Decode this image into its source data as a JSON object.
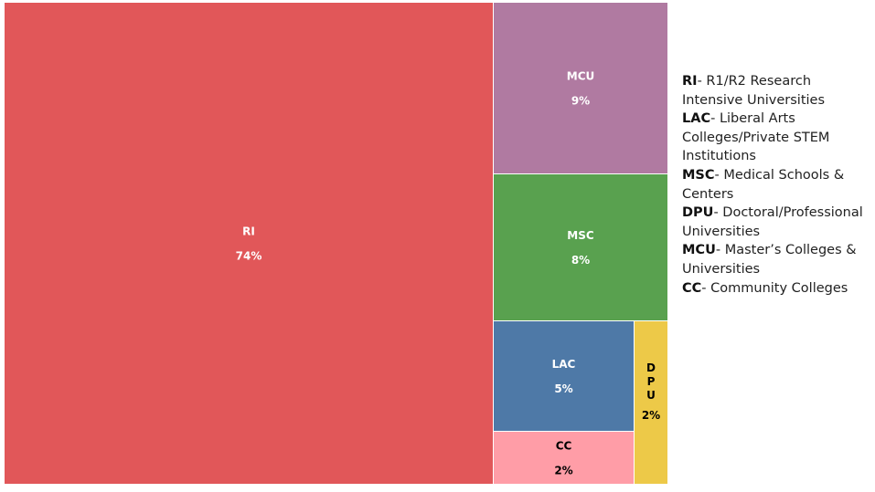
{
  "chart_data": {
    "type": "treemap",
    "segments": [
      {
        "code": "RI",
        "value_label": "74%",
        "value": 74,
        "color": "#e15759",
        "text_color": "#ffffff"
      },
      {
        "code": "MCU",
        "value_label": "9%",
        "value": 9,
        "color": "#b07aa1",
        "text_color": "#ffffff"
      },
      {
        "code": "MSC",
        "value_label": "8%",
        "value": 8,
        "color": "#59a14f",
        "text_color": "#ffffff"
      },
      {
        "code": "LAC",
        "value_label": "5%",
        "value": 5,
        "color": "#4e79a7",
        "text_color": "#ffffff"
      },
      {
        "code": "CC",
        "value_label": "2%",
        "value": 2,
        "color": "#ff9da7",
        "text_color": "#000000"
      },
      {
        "code": "DPU",
        "value_label": "2%",
        "value": 2,
        "color": "#edc948",
        "text_color": "#000000"
      }
    ]
  },
  "legend": {
    "items": [
      {
        "code": "RI",
        "desc": "- R1/R2 Research Intensive Universities"
      },
      {
        "code": "LAC",
        "desc": "- Liberal Arts Colleges/Private STEM Institutions"
      },
      {
        "code": "MSC",
        "desc": "- Medical Schools & Centers"
      },
      {
        "code": "DPU",
        "desc": "-  Doctoral/Professional Universities"
      },
      {
        "code": "MCU",
        "desc": "- Master’s Colleges & Universities"
      },
      {
        "code": "CC",
        "desc": "- Community Colleges"
      }
    ]
  }
}
